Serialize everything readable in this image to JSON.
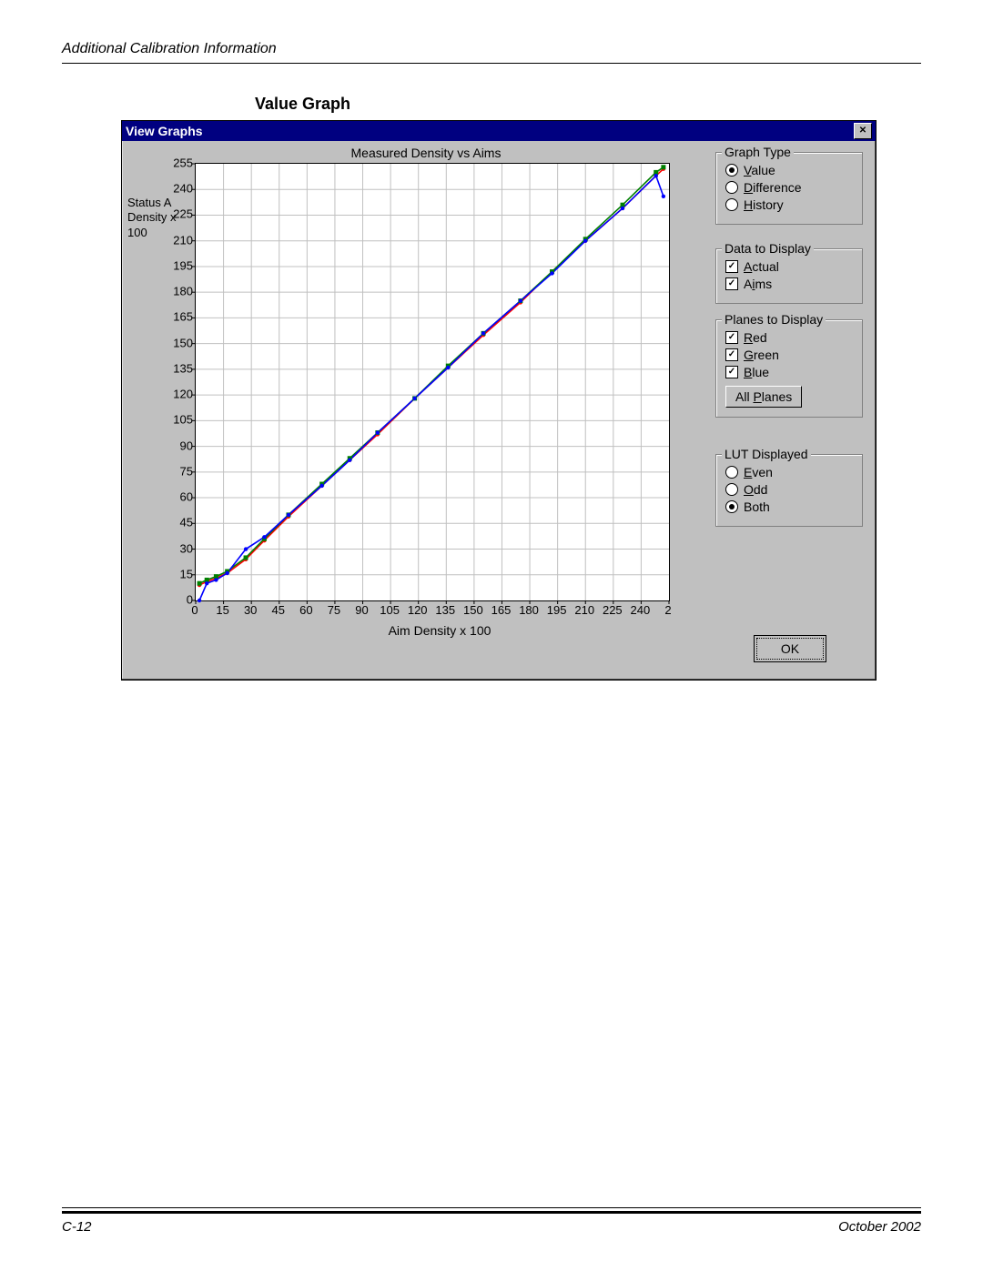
{
  "page": {
    "header_title": "Additional Calibration Information",
    "section_title": "Value Graph",
    "footer_left": "C-12",
    "footer_right": "October 2002"
  },
  "dialog": {
    "title": "View Graphs"
  },
  "chart": {
    "type": "line",
    "title": "Measured Density vs Aims",
    "y_label": "Status A\nDensity x\n100",
    "x_label": "Aim Density x 100",
    "y_ticks": [
      0,
      15,
      30,
      45,
      60,
      75,
      90,
      105,
      120,
      135,
      150,
      165,
      180,
      195,
      210,
      225,
      240,
      255
    ],
    "x_ticks": [
      0,
      15,
      30,
      45,
      60,
      75,
      90,
      105,
      120,
      135,
      150,
      165,
      180,
      195,
      210,
      225,
      240,
      "2"
    ],
    "xlim": [
      0,
      255
    ],
    "ylim": [
      0,
      255
    ],
    "grid_color": "#c0c0c0",
    "background_color": "#ffffff",
    "axis_color": "#000000",
    "series": {
      "red": {
        "color": "#ff0000",
        "points": [
          [
            2,
            9
          ],
          [
            6,
            11
          ],
          [
            11,
            13
          ],
          [
            17,
            16
          ],
          [
            27,
            24
          ],
          [
            37,
            35
          ],
          [
            50,
            49
          ],
          [
            68,
            67
          ],
          [
            83,
            82
          ],
          [
            98,
            97
          ],
          [
            118,
            118
          ],
          [
            136,
            136
          ],
          [
            155,
            155
          ],
          [
            175,
            174
          ],
          [
            192,
            192
          ],
          [
            210,
            210
          ],
          [
            230,
            229
          ],
          [
            248,
            248
          ],
          [
            252,
            252
          ]
        ]
      },
      "green": {
        "color": "#008000",
        "points": [
          [
            2,
            10
          ],
          [
            6,
            12
          ],
          [
            11,
            14
          ],
          [
            17,
            17
          ],
          [
            27,
            25
          ],
          [
            37,
            36
          ],
          [
            50,
            50
          ],
          [
            68,
            68
          ],
          [
            83,
            83
          ],
          [
            98,
            98
          ],
          [
            118,
            118
          ],
          [
            136,
            137
          ],
          [
            155,
            156
          ],
          [
            175,
            175
          ],
          [
            192,
            192
          ],
          [
            210,
            211
          ],
          [
            230,
            231
          ],
          [
            248,
            250
          ],
          [
            252,
            253
          ]
        ]
      },
      "blue": {
        "color": "#0000ff",
        "points": [
          [
            2,
            0
          ],
          [
            6,
            10
          ],
          [
            11,
            12
          ],
          [
            17,
            16
          ],
          [
            27,
            30
          ],
          [
            37,
            37
          ],
          [
            50,
            50
          ],
          [
            68,
            67
          ],
          [
            83,
            82
          ],
          [
            98,
            98
          ],
          [
            118,
            118
          ],
          [
            136,
            136
          ],
          [
            155,
            156
          ],
          [
            175,
            175
          ],
          [
            192,
            191
          ],
          [
            210,
            210
          ],
          [
            230,
            229
          ],
          [
            248,
            248
          ],
          [
            252,
            236
          ]
        ]
      }
    },
    "marker_radius": 2.2,
    "line_width": 1.6
  },
  "panels": {
    "graph_type": {
      "legend": "Graph Type",
      "options": [
        {
          "label": "Value",
          "underline": "V",
          "selected": true
        },
        {
          "label": "Difference",
          "underline": "D",
          "selected": false
        },
        {
          "label": "History",
          "underline": "H",
          "selected": false
        }
      ]
    },
    "data_to_display": {
      "legend": "Data to Display",
      "options": [
        {
          "label": "Actual",
          "underline": "A",
          "checked": true
        },
        {
          "label": "Aims",
          "underline": "i",
          "checked": true,
          "underline_index": 1
        }
      ]
    },
    "planes_to_display": {
      "legend": "Planes to Display",
      "options": [
        {
          "label": "Red",
          "underline": "R",
          "checked": true
        },
        {
          "label": "Green",
          "underline": "G",
          "checked": true
        },
        {
          "label": "Blue",
          "underline": "B",
          "checked": true
        }
      ],
      "button": {
        "label": "All Planes",
        "underline": "P",
        "underline_index": 4
      }
    },
    "lut_displayed": {
      "legend": "LUT Displayed",
      "options": [
        {
          "label": "Even",
          "underline": "E",
          "selected": false
        },
        {
          "label": "Odd",
          "underline": "O",
          "selected": false
        },
        {
          "label": "Both",
          "underline": null,
          "selected": true
        }
      ]
    },
    "ok": {
      "label": "OK"
    }
  }
}
